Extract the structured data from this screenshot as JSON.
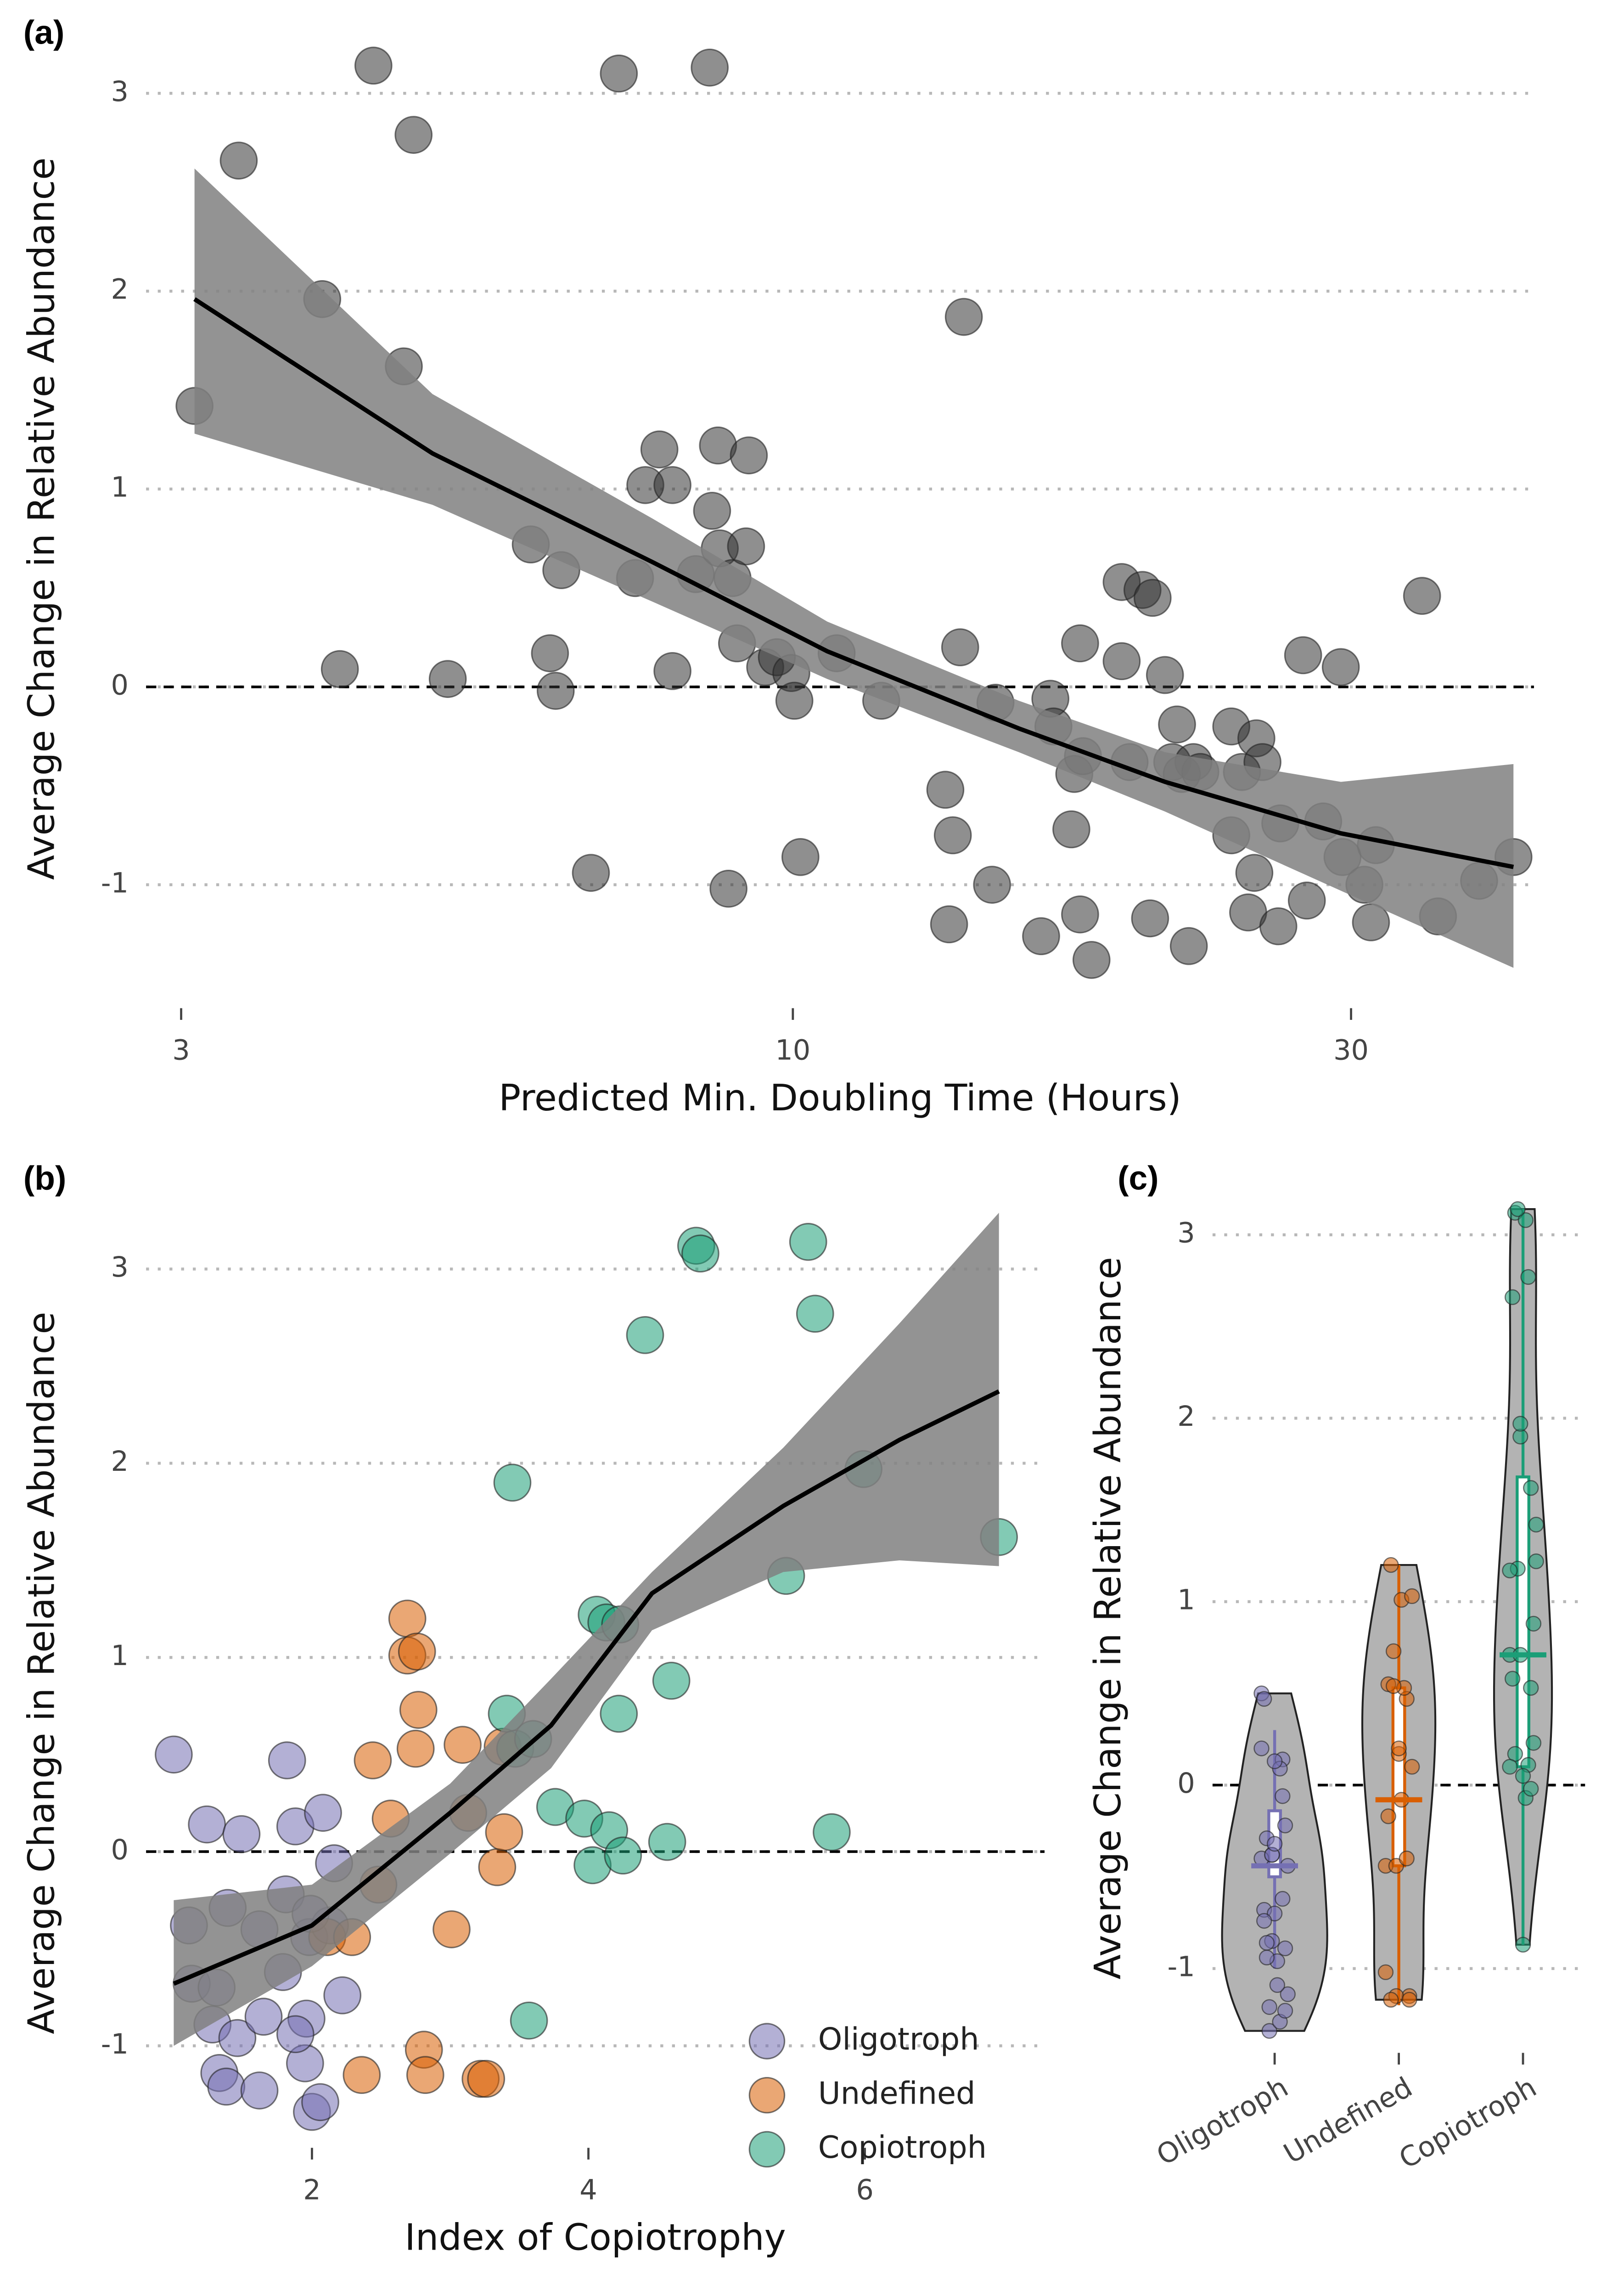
{
  "chart_data": [
    {
      "type": "scatter",
      "panel_label": "(a)",
      "x_label": "Predicted Min. Doubling Time (Hours)",
      "y_label": "Average Change in Relative Abundance",
      "log_x": true,
      "xlim": [
        2.8,
        43
      ],
      "ylim": [
        -1.55,
        3.25
      ],
      "xticks": [
        3,
        10,
        30
      ],
      "yticks": [
        -1,
        0,
        1,
        2,
        3
      ],
      "grid": true,
      "hline": 0,
      "series": [
        {
          "color": "#333333",
          "x": [
            3.08,
            3.36,
            3.96,
            4.38,
            4.74,
            4.65,
            4.1,
            5.07,
            5.97,
            6.2,
            6.27,
            6.34,
            6.72,
            7.1,
            7.33,
            7.48,
            7.69,
            7.89,
            7.89,
            8.26,
            8.49,
            8.53,
            8.63,
            8.66,
            8.81,
            8.88,
            8.96,
            9.12,
            9.17,
            9.47,
            9.69,
            9.97,
            10.03,
            10.15,
            10.9,
            11.9,
            13.5,
            13.6,
            13.7,
            13.9,
            14.0,
            14.8,
            14.9,
            16.3,
            16.6,
            16.7,
            17.3,
            17.4,
            17.6,
            17.6,
            17.7,
            18.0,
            19.1,
            19.1,
            19.4,
            19.9,
            20.3,
            20.2,
            20.8,
            21.1,
            21.3,
            21.8,
            22.0,
            21.5,
            22.3,
            23.7,
            23.7,
            24.2,
            24.5,
            24.8,
            24.9,
            25.2,
            26.0,
            26.1,
            27.3,
            27.5,
            28.4,
            29.4,
            29.5,
            30.8,
            31.2,
            31.5,
            34.5,
            35.6,
            38.6,
            41.3
          ],
          "values": [
            1.42,
            2.66,
            1.96,
            3.14,
            2.79,
            1.62,
            0.09,
            0.04,
            0.72,
            0.17,
            -0.02,
            0.59,
            -0.94,
            3.1,
            0.55,
            1.02,
            1.2,
            0.08,
            1.02,
            0.57,
            3.13,
            0.89,
            1.22,
            0.7,
            -1.02,
            0.55,
            0.22,
            0.71,
            1.17,
            0.1,
            0.15,
            0.07,
            -0.07,
            -0.86,
            0.17,
            -0.07,
            -0.52,
            -1.2,
            -0.75,
            0.2,
            1.87,
            -1.0,
            -0.08,
            -1.26,
            -0.06,
            -0.2,
            -0.72,
            -0.44,
            0.22,
            -1.15,
            -0.35,
            -1.38,
            0.53,
            0.13,
            -0.38,
            0.49,
            0.45,
            -1.17,
            0.06,
            -0.38,
            -0.19,
            -1.31,
            -0.38,
            -0.44,
            -0.43,
            -0.75,
            -0.2,
            -0.43,
            -1.14,
            -0.94,
            -0.26,
            -0.38,
            -1.21,
            -0.69,
            0.16,
            -1.08,
            -0.68,
            0.1,
            -0.86,
            -1.0,
            -1.19,
            -0.8,
            0.46,
            -1.16,
            -0.98,
            -0.86
          ]
        }
      ],
      "smooth": {
        "color": "#000000",
        "band_color": "#808080",
        "x": [
          3.08,
          4.92,
          7.59,
          10.7,
          15.6,
          20.8,
          29.4,
          41.3
        ],
        "values": [
          1.96,
          1.18,
          0.63,
          0.18,
          -0.21,
          -0.48,
          -0.74,
          -0.91
        ],
        "lower": [
          1.28,
          0.92,
          0.43,
          0.04,
          -0.33,
          -0.63,
          -1.03,
          -1.42
        ],
        "upper": [
          2.62,
          1.48,
          0.85,
          0.33,
          -0.07,
          -0.33,
          -0.48,
          -0.39
        ]
      }
    },
    {
      "type": "scatter",
      "panel_label": "(b)",
      "x_label": "Index of Copiotrophy",
      "y_label": "Average Change in Relative Abundance",
      "xlim": [
        0.8,
        7.3
      ],
      "ylim": [
        -1.45,
        3.29
      ],
      "xticks": [
        2,
        4,
        6
      ],
      "yticks": [
        -1,
        0,
        1,
        2,
        3
      ],
      "grid": true,
      "hline": 0,
      "legend": "bottom-right",
      "series": [
        {
          "name": "Oligotroph",
          "color": "#7570b3",
          "x": [
            1.0,
            1.11,
            1.24,
            1.13,
            1.31,
            1.28,
            1.39,
            1.46,
            1.33,
            1.38,
            1.49,
            1.62,
            1.65,
            1.79,
            1.82,
            1.88,
            1.81,
            1.96,
            1.95,
            1.98,
            2.0,
            2.06,
            2.08,
            2.13,
            2.16,
            2.22,
            1.99,
            1.62,
            1.88
          ],
          "values": [
            0.5,
            -0.38,
            0.14,
            -0.68,
            -0.7,
            -0.89,
            -0.29,
            -0.96,
            -1.14,
            -1.21,
            0.09,
            -0.4,
            -0.85,
            -0.62,
            0.47,
            0.13,
            -0.22,
            -0.86,
            -1.09,
            -0.44,
            -1.34,
            -1.29,
            0.2,
            -0.38,
            -0.06,
            -0.74,
            -0.32,
            -1.23,
            -0.94
          ]
        },
        {
          "name": "Undefined",
          "color": "#d95f02",
          "x": [
            2.11,
            2.29,
            2.44,
            2.48,
            2.57,
            2.36,
            2.69,
            2.69,
            2.76,
            2.77,
            2.75,
            2.81,
            2.82,
            3.01,
            3.09,
            3.13,
            3.22,
            3.26,
            3.34,
            3.39,
            3.38
          ],
          "values": [
            -0.44,
            -0.44,
            0.47,
            -0.17,
            0.17,
            -1.15,
            1.2,
            1.01,
            1.03,
            0.73,
            0.53,
            -1.02,
            -1.15,
            -0.4,
            0.55,
            0.2,
            -1.17,
            -1.17,
            -0.08,
            0.1,
            0.54
          ]
        },
        {
          "name": "Copiotroph",
          "color": "#1b9e77",
          "x": [
            3.41,
            3.45,
            3.47,
            3.6,
            3.57,
            3.76,
            3.97,
            4.03,
            4.06,
            4.13,
            4.15,
            4.23,
            4.22,
            4.25,
            4.41,
            4.57,
            4.6,
            4.78,
            4.81,
            5.43,
            5.59,
            5.64,
            5.76,
            5.99,
            6.97
          ],
          "values": [
            0.71,
            1.9,
            0.53,
            0.58,
            -0.87,
            0.23,
            0.17,
            -0.07,
            1.22,
            1.18,
            0.11,
            1.17,
            0.71,
            -0.02,
            2.66,
            0.05,
            0.88,
            3.12,
            3.08,
            1.42,
            3.14,
            2.77,
            0.1,
            1.97,
            1.62
          ]
        }
      ],
      "smooth": {
        "color": "#000000",
        "band_color": "#808080",
        "x": [
          1.0,
          2.0,
          3.0,
          3.73,
          4.46,
          5.41,
          6.25,
          6.97
        ],
        "values": [
          -0.68,
          -0.38,
          0.2,
          0.65,
          1.33,
          1.78,
          2.12,
          2.37
        ],
        "lower": [
          -1.0,
          -0.59,
          -0.01,
          0.43,
          1.14,
          1.44,
          1.5,
          1.47
        ],
        "upper": [
          -0.25,
          -0.17,
          0.35,
          0.89,
          1.44,
          2.08,
          2.72,
          3.29
        ]
      }
    },
    {
      "type": "violin",
      "panel_label": "(c)",
      "y_label": "Average Change in Relative Abundance",
      "categories": [
        "Oligotroph",
        "Undefined",
        "Copiotroph"
      ],
      "colors": [
        "#7570b3",
        "#d95f02",
        "#1b9e77"
      ],
      "ylim": [
        -1.38,
        3.2
      ],
      "yticks": [
        -1,
        0,
        1,
        2,
        3
      ],
      "grid": true,
      "hline": 0,
      "boxes": {
        "median": [
          -0.44,
          -0.08,
          0.71
        ],
        "q1": [
          -0.5,
          -0.44,
          0.1
        ],
        "q3": [
          -0.14,
          0.53,
          1.68
        ],
        "low": [
          -1.0,
          -1.2,
          -0.87
        ],
        "high": [
          0.3,
          1.2,
          3.14
        ]
      }
    }
  ]
}
